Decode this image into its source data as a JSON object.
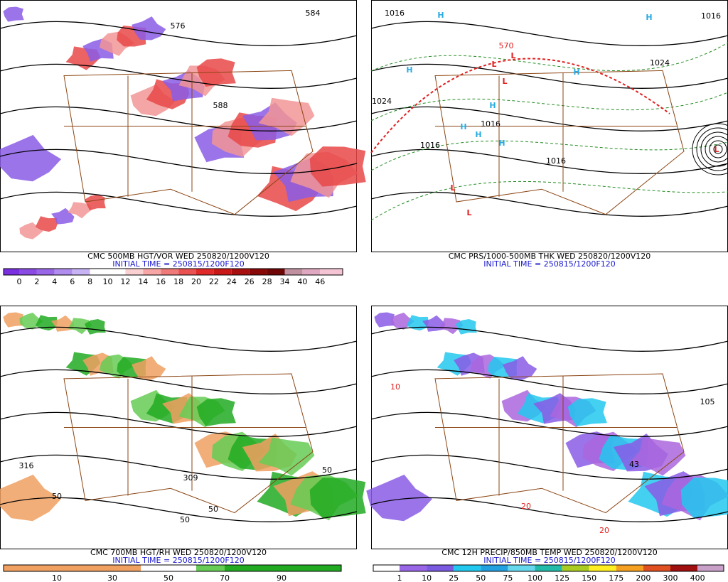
{
  "panels": [
    {
      "caption": "CMC 500MB HGT/VOR WED 250820/1200V120",
      "initial_time": "INITIAL TIME = 250815/1200F120",
      "colorbar": {
        "labels": [
          0,
          2,
          4,
          6,
          8,
          10,
          12,
          14,
          16,
          18,
          20,
          22,
          24,
          26,
          28,
          34,
          40,
          46
        ]
      },
      "map_labels": [
        "584",
        "576",
        "588"
      ]
    },
    {
      "caption": "CMC PRS/1000-500MB THK WED 250820/1200V120",
      "initial_time": "INITIAL TIME = 250815/1200F120",
      "map_labels": [
        "1016",
        "1024",
        "1016",
        "1024",
        "1016",
        "1016",
        "1016",
        "570",
        "H",
        "H",
        "H",
        "H",
        "H",
        "H",
        "H",
        "H",
        "L",
        "L",
        "L",
        "L",
        "L",
        "L"
      ]
    },
    {
      "caption": "CMC 700MB HGT/RH WED 250820/1200V120",
      "initial_time": "INITIAL TIME = 250815/1200F120",
      "colorbar": {
        "labels": [
          10,
          30,
          50,
          70,
          90
        ]
      },
      "map_labels": [
        "50",
        "50",
        "50",
        "309",
        "316",
        "50"
      ]
    },
    {
      "caption": "CMC 12H PRECIP/850MB TEMP WED 250820/1200V120",
      "initial_time": "INITIAL TIME = 250815/1200F120",
      "colorbar": {
        "labels": [
          1,
          10,
          25,
          50,
          75,
          100,
          125,
          150,
          175,
          200,
          300,
          400
        ]
      },
      "map_labels": [
        "10",
        "20",
        "20",
        "105",
        "43"
      ]
    }
  ]
}
